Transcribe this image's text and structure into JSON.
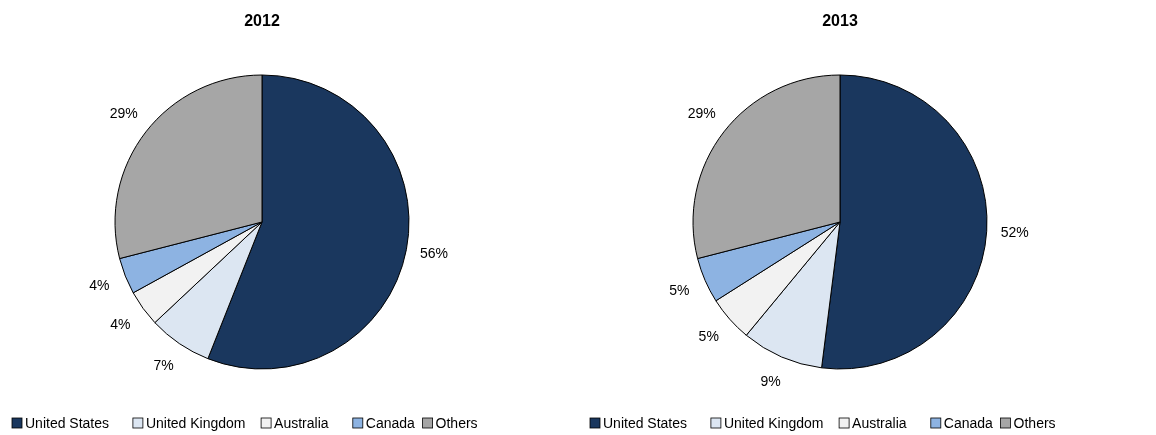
{
  "chart_data": [
    {
      "type": "pie",
      "title": "2012",
      "categories": [
        "United States",
        "United Kingdom",
        "Australia",
        "Canada",
        "Others"
      ],
      "values": [
        56,
        7,
        4,
        4,
        29
      ],
      "value_labels": [
        "56%",
        "7%",
        "4%",
        "4%",
        "29%"
      ],
      "colors": [
        "#1a375e",
        "#dce6f2",
        "#f2f2f2",
        "#8db3e2",
        "#a6a6a6"
      ],
      "legend": "bottom"
    },
    {
      "type": "pie",
      "title": "2013",
      "categories": [
        "United States",
        "United Kingdom",
        "Australia",
        "Canada",
        "Others"
      ],
      "values": [
        52,
        9,
        5,
        5,
        29
      ],
      "value_labels": [
        "52%",
        "9%",
        "5%",
        "5%",
        "29%"
      ],
      "colors": [
        "#1a375e",
        "#dce6f2",
        "#f2f2f2",
        "#8db3e2",
        "#a6a6a6"
      ],
      "legend": "bottom"
    }
  ]
}
